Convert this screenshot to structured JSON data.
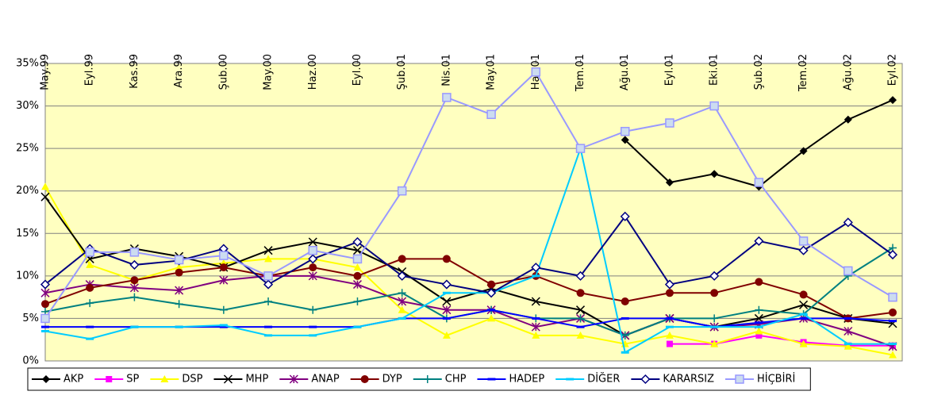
{
  "chart_data": {
    "type": "line",
    "categories": [
      "May.99",
      "Eyl.99",
      "Kas.99",
      "Ara.99",
      "Şub.00",
      "May.00",
      "Haz.00",
      "Eyl.00",
      "Şub.01",
      "Nis.01",
      "May.01",
      "Haz.01",
      "Tem.01",
      "Ağu.01",
      "Eyl.01",
      "Eki.01",
      "Şub.02",
      "Tem.02",
      "Ağu.02",
      "Eyl.02"
    ],
    "ylim": [
      0,
      35
    ],
    "yticks": [
      {
        "value": 0,
        "label": "0%"
      },
      {
        "value": 5,
        "label": "5%"
      },
      {
        "value": 10,
        "label": "10%"
      },
      {
        "value": 15,
        "label": "15%"
      },
      {
        "value": 20,
        "label": "20%"
      },
      {
        "value": 25,
        "label": "25%"
      },
      {
        "value": 30,
        "label": "30%"
      },
      {
        "value": 35,
        "label": "35%"
      }
    ],
    "grid": true,
    "legend": "bottom",
    "series": [
      {
        "name": "AKP",
        "color": "#000000",
        "marker": "diamond",
        "values": [
          null,
          null,
          null,
          null,
          null,
          null,
          null,
          null,
          null,
          null,
          null,
          null,
          null,
          26,
          21,
          22,
          20.5,
          24.7,
          28.4,
          30.7
        ]
      },
      {
        "name": "SP",
        "color": "#ff00ff",
        "marker": "square",
        "values": [
          null,
          null,
          null,
          null,
          null,
          null,
          null,
          null,
          null,
          null,
          null,
          null,
          null,
          null,
          2,
          2,
          3,
          2.2,
          1.8,
          1.8
        ]
      },
      {
        "name": "DSP",
        "color": "#ffff00",
        "marker": "triangle",
        "values": [
          20.5,
          11.3,
          9.5,
          11,
          11.5,
          12,
          12,
          11,
          6,
          3,
          5,
          3,
          3,
          2,
          3,
          2,
          3.5,
          2,
          1.7,
          0.7
        ]
      },
      {
        "name": "MHP",
        "color": "#000000",
        "marker": "x",
        "values": [
          19.3,
          12,
          13.2,
          12.3,
          11,
          13,
          14,
          13,
          10.5,
          7,
          8.5,
          7,
          6,
          3,
          5,
          4,
          5,
          6.6,
          5,
          4.4
        ]
      },
      {
        "name": "ANAP",
        "color": "#800080",
        "marker": "star",
        "values": [
          8,
          9,
          8.6,
          8.3,
          9.5,
          10,
          10,
          9,
          7,
          6,
          6,
          4,
          5,
          3,
          5,
          4,
          4.3,
          5,
          3.5,
          1.7
        ]
      },
      {
        "name": "DYP",
        "color": "#800000",
        "marker": "circle",
        "values": [
          6.7,
          8.6,
          9.5,
          10.4,
          11,
          10,
          11,
          10,
          12,
          12,
          9,
          10,
          8,
          7,
          8,
          8,
          9.3,
          7.8,
          5,
          5.7
        ]
      },
      {
        "name": "CHP",
        "color": "#008080",
        "marker": "plus",
        "values": [
          5.8,
          6.8,
          7.5,
          6.7,
          6,
          7,
          6,
          7,
          8,
          5,
          6,
          5,
          5,
          3,
          5,
          5,
          6,
          5.5,
          10,
          13.3
        ]
      },
      {
        "name": "HADEP",
        "color": "#0000ff",
        "marker": "dash",
        "values": [
          4,
          4,
          4,
          4,
          4,
          4,
          4,
          4,
          5,
          5,
          6,
          5,
          4,
          5,
          5,
          4,
          4.5,
          5,
          5,
          4.7
        ]
      },
      {
        "name": "DİĞER",
        "color": "#00ccff",
        "marker": "dash",
        "values": [
          3.5,
          2.6,
          4,
          4,
          4.2,
          3,
          3,
          4,
          5,
          8,
          8,
          10,
          25,
          1,
          4,
          4,
          4,
          5.5,
          2,
          2
        ]
      },
      {
        "name": "KARARSIZ",
        "color": "#000080",
        "marker": "opendiamond",
        "values": [
          9,
          13.2,
          11.3,
          11.8,
          13.2,
          9,
          12,
          14,
          10,
          9,
          8,
          11,
          10,
          17,
          9,
          10,
          14.1,
          13,
          16.3,
          12.5
        ]
      },
      {
        "name": "HİÇBİRİ",
        "color": "#9999ff",
        "marker": "opensquare",
        "values": [
          5,
          12.8,
          12.8,
          11.9,
          12.4,
          10,
          13,
          12,
          20,
          31,
          29,
          34,
          25,
          27,
          28,
          30,
          21,
          14.1,
          10.6,
          7.5
        ]
      }
    ]
  }
}
